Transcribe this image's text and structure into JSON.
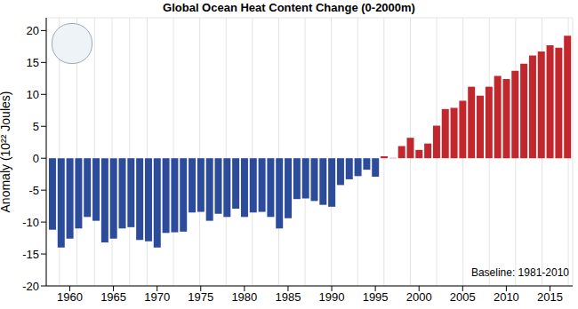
{
  "chart_data": {
    "type": "bar",
    "title": "Global Ocean Heat Content Change (0-2000m)",
    "y_label": "Anomaly (10²² Joules)",
    "annotation": "Baseline: 1981-2010",
    "x": [
      1958,
      1959,
      1960,
      1961,
      1962,
      1963,
      1964,
      1965,
      1966,
      1967,
      1968,
      1969,
      1970,
      1971,
      1972,
      1973,
      1974,
      1975,
      1976,
      1977,
      1978,
      1979,
      1980,
      1981,
      1982,
      1983,
      1984,
      1985,
      1986,
      1987,
      1988,
      1989,
      1990,
      1991,
      1992,
      1993,
      1994,
      1995,
      1996,
      1997,
      1998,
      1999,
      2000,
      2001,
      2002,
      2003,
      2004,
      2005,
      2006,
      2007,
      2008,
      2009,
      2010,
      2011,
      2012,
      2013,
      2014,
      2015,
      2016,
      2017
    ],
    "values": [
      -11.2,
      -14,
      -12.6,
      -11,
      -9.2,
      -9.8,
      -13.2,
      -12.6,
      -11,
      -10.8,
      -12.8,
      -13,
      -14,
      -11.7,
      -11.6,
      -11.5,
      -8.5,
      -8.4,
      -9.8,
      -8.7,
      -9.2,
      -7.9,
      -9.2,
      -8.5,
      -8.4,
      -9.2,
      -11,
      -9.4,
      -6.4,
      -6.3,
      -6.7,
      -7.3,
      -7.6,
      -4.2,
      -3.3,
      -2.8,
      -1.8,
      -2.9,
      0.3,
      0.05,
      1.9,
      3.2,
      1.3,
      2.3,
      5.1,
      7.7,
      7.9,
      9,
      11.2,
      9.8,
      11.2,
      12.9,
      12.4,
      13.7,
      14.8,
      16.1,
      16.7,
      17.7,
      17.3,
      19.2
    ],
    "colors": [
      "#2c4b9b",
      "#2c4b9b",
      "#2c4b9b",
      "#2c4b9b",
      "#2c4b9b",
      "#2c4b9b",
      "#2c4b9b",
      "#2c4b9b",
      "#2c4b9b",
      "#2c4b9b",
      "#2c4b9b",
      "#2c4b9b",
      "#2c4b9b",
      "#2c4b9b",
      "#2c4b9b",
      "#2c4b9b",
      "#2c4b9b",
      "#2c4b9b",
      "#2c4b9b",
      "#2c4b9b",
      "#2c4b9b",
      "#2c4b9b",
      "#2c4b9b",
      "#2c4b9b",
      "#2c4b9b",
      "#2c4b9b",
      "#2c4b9b",
      "#2c4b9b",
      "#2c4b9b",
      "#2c4b9b",
      "#2c4b9b",
      "#2c4b9b",
      "#2c4b9b",
      "#2c4b9b",
      "#2c4b9b",
      "#2c4b9b",
      "#2c4b9b",
      "#2c4b9b",
      "#c1272d",
      "#c1272d",
      "#c1272d",
      "#c1272d",
      "#c1272d",
      "#c1272d",
      "#c1272d",
      "#c1272d",
      "#c1272d",
      "#c1272d",
      "#c1272d",
      "#c1272d",
      "#c1272d",
      "#c1272d",
      "#c1272d",
      "#c1272d",
      "#c1272d",
      "#c1272d",
      "#c1272d",
      "#c1272d",
      "#c1272d",
      "#c1272d"
    ],
    "xlim": [
      1957.3,
      2017.6
    ],
    "xticks": [
      1960,
      1965,
      1970,
      1975,
      1980,
      1985,
      1990,
      1995,
      2000,
      2005,
      2010,
      2015
    ],
    "ylim": [
      -20,
      22
    ],
    "yticks": [
      -20,
      -15,
      -10,
      -5,
      0,
      5,
      10,
      15,
      20
    ],
    "grid": true
  }
}
